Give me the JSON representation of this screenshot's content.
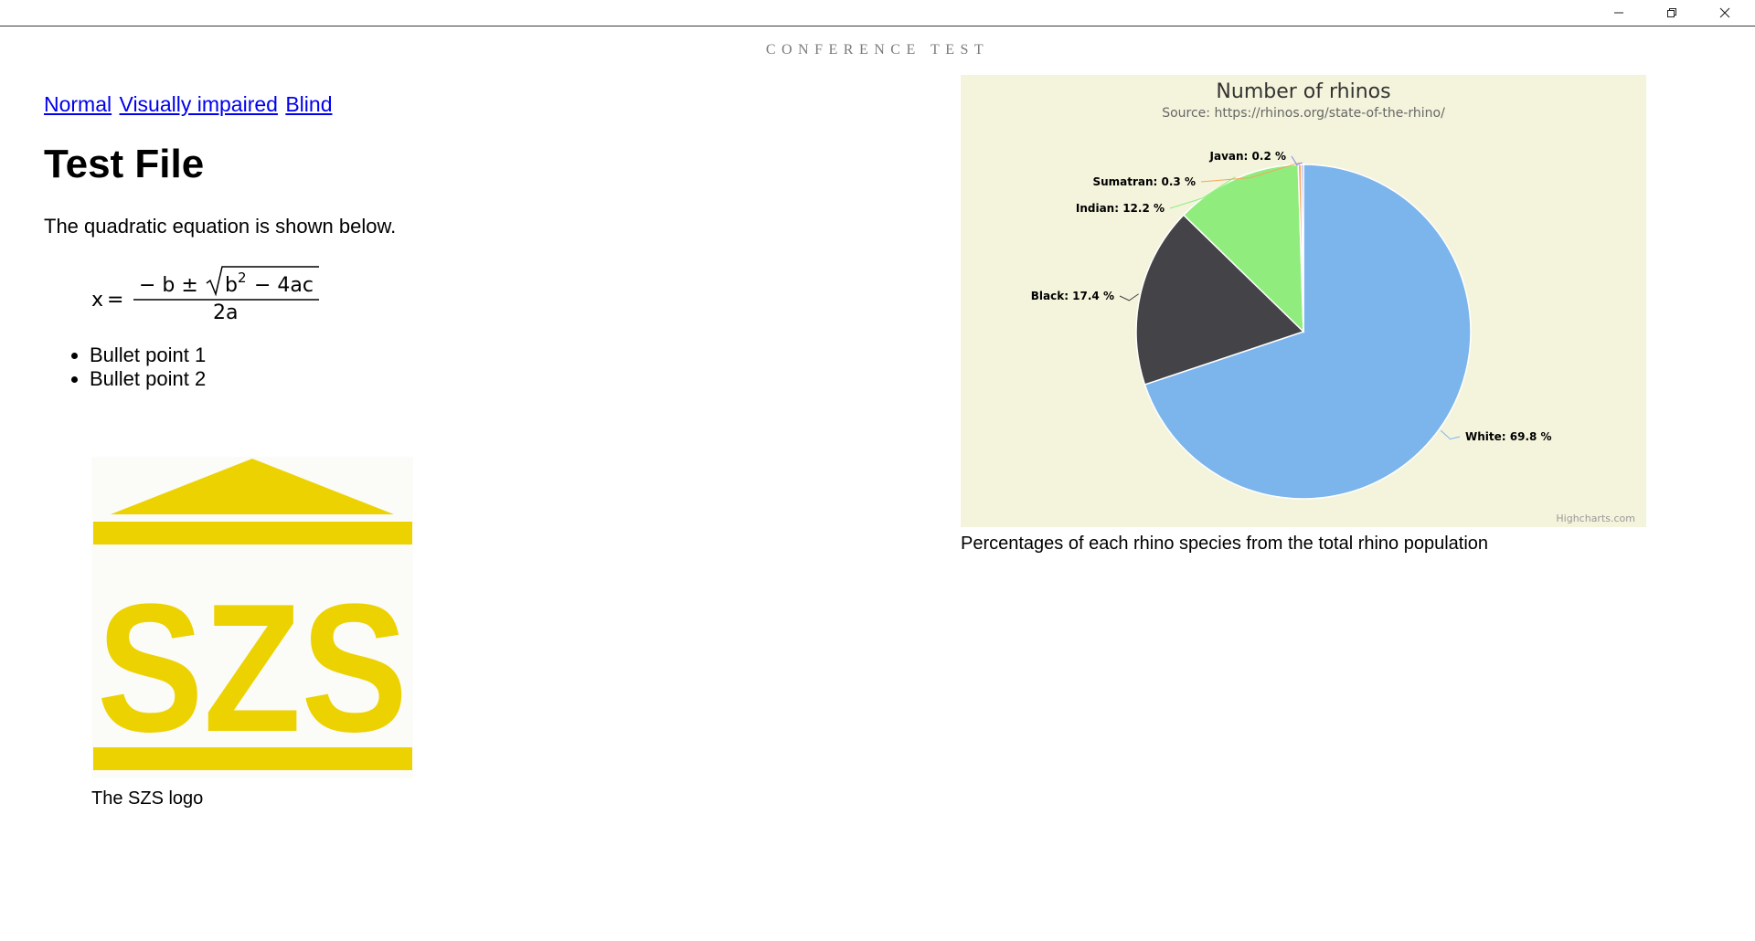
{
  "window": {
    "title": "CONFERENCE TEST",
    "controls": {
      "minimize": "minimize-icon",
      "restore": "restore-icon",
      "close": "close-icon"
    }
  },
  "modes": [
    "Normal",
    "Visually impaired",
    "Blind"
  ],
  "doc": {
    "title": "Test File",
    "intro": "The quadratic equation is shown below.",
    "equation": {
      "lhs": "x",
      "equals": "=",
      "numerator_prefix": "− b ±",
      "radicand_base": "b",
      "radicand_exp": "2",
      "radicand_rest": "− 4ac",
      "denominator": "2a"
    },
    "bullets": [
      "Bullet point 1",
      "Bullet point 2"
    ],
    "logo": {
      "text": "SZS",
      "color": "#ecd200",
      "caption": "The SZS logo"
    }
  },
  "chart_data": {
    "type": "pie",
    "title": "Number of rhinos",
    "subtitle": "Source: https://rhinos.org/state-of-the-rhino/",
    "credit": "Highcharts.com",
    "background": "#f4f4dc",
    "slices": [
      {
        "name": "White",
        "value": 69.8,
        "label": "White: 69.8 %",
        "color": "#7cb5ec"
      },
      {
        "name": "Black",
        "value": 17.4,
        "label": "Black: 17.4 %",
        "color": "#434348"
      },
      {
        "name": "Indian",
        "value": 12.2,
        "label": "Indian: 12.2 %",
        "color": "#90ed7d"
      },
      {
        "name": "Sumatran",
        "value": 0.3,
        "label": "Sumatran: 0.3 %",
        "color": "#f7a35c"
      },
      {
        "name": "Javan",
        "value": 0.2,
        "label": "Javan: 0.2 %",
        "color": "#8085e9"
      }
    ],
    "caption": "Percentages of each rhino species from the total rhino population"
  }
}
